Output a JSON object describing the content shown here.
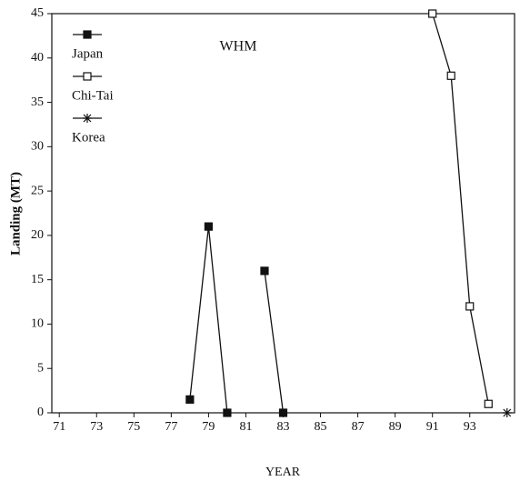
{
  "chart_data": {
    "type": "line",
    "title": "WHM",
    "x_label": "YEAR",
    "y_label": "Landing (MT)",
    "xlim": [
      70.6,
      95.4
    ],
    "ylim": [
      0,
      45
    ],
    "xticks": [
      71,
      73,
      75,
      77,
      79,
      81,
      83,
      85,
      87,
      89,
      91,
      93
    ],
    "yticks": [
      0,
      5,
      10,
      15,
      20,
      25,
      30,
      35,
      40,
      45
    ],
    "legend": "upper left",
    "series": [
      {
        "name": "Japan",
        "color": "#111111",
        "marker": "filled-square",
        "x": [
          78,
          79,
          80,
          81,
          82,
          83
        ],
        "values": [
          1.5,
          21,
          0,
          null,
          16,
          0
        ]
      },
      {
        "name": "Chi-Tai",
        "color": "#111111",
        "marker": "open-square",
        "x": [
          91,
          92,
          93,
          94
        ],
        "values": [
          45,
          38,
          12,
          1
        ]
      },
      {
        "name": "Korea",
        "color": "#111111",
        "marker": "asterisk",
        "x": [
          95
        ],
        "values": [
          0
        ]
      }
    ]
  }
}
